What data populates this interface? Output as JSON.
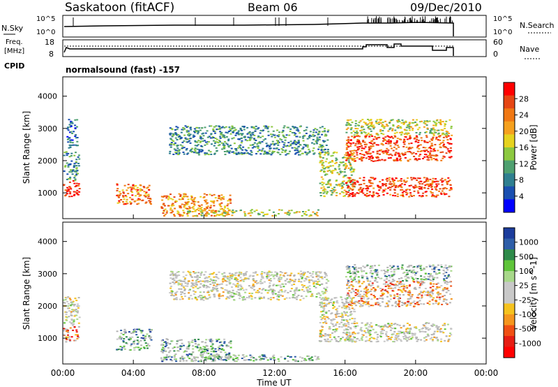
{
  "header": {
    "station": "Saskatoon (fitACF)",
    "beam": "Beam 06",
    "date": "09/Dec/2010"
  },
  "top_panels": {
    "nsky_label": "N.Sky",
    "nsky_ticks": [
      "10^5",
      "10^0"
    ],
    "nsearch_label": "N.Search",
    "nsearch_ticks": [
      "10^5",
      "10^0"
    ],
    "freq_label": "Freq.",
    "freq_unit": "[MHz]",
    "freq_ticks": [
      "18",
      "8"
    ],
    "nave_label": "Nave",
    "nave_ticks": [
      "60",
      "0"
    ],
    "cpid_label": "CPID",
    "cpid_value": "normalsound (fast) -157"
  },
  "colors": {
    "power_scale": [
      "#0000ff",
      "#1a4fb0",
      "#2f7f90",
      "#4fa070",
      "#8cc840",
      "#e6d21e",
      "#f5a01e",
      "#f07814",
      "#e64614",
      "#ff0000"
    ],
    "velocity_scale": [
      "#1c3c9c",
      "#2e5ea8",
      "#2e8a4a",
      "#5fc43a",
      "#a8d88a",
      "#c8c8c8",
      "#c8c8c8",
      "#f5c21e",
      "#f5961e",
      "#f05014",
      "#e61e14",
      "#ff0000"
    ],
    "ground_scatter": "#b4b4b4"
  },
  "chart_data": [
    {
      "type": "heatmap",
      "name": "power",
      "ylabel": "Slant Range [km]",
      "ylim": [
        200,
        4600
      ],
      "yticks": [
        "1000",
        "2000",
        "3000",
        "4000"
      ],
      "xlim_hours": [
        0,
        24
      ],
      "colorbar_label": "Power [dB]",
      "colorbar_ticks": [
        "4",
        "8",
        "12",
        "16",
        "20",
        "24",
        "28"
      ],
      "regions": [
        {
          "t0": 0.0,
          "t1": 0.9,
          "r0": 900,
          "r1": 1400,
          "level": 0.95
        },
        {
          "t0": 0.0,
          "t1": 0.9,
          "r0": 1400,
          "r1": 2300,
          "level": 0.3
        },
        {
          "t0": 0.2,
          "t1": 0.8,
          "r0": 2400,
          "r1": 3300,
          "level": 0.2
        },
        {
          "t0": 3.0,
          "t1": 5.0,
          "r0": 650,
          "r1": 1300,
          "level": 0.75
        },
        {
          "t0": 5.5,
          "t1": 9.5,
          "r0": 300,
          "r1": 1000,
          "level": 0.7
        },
        {
          "t0": 6.0,
          "t1": 15.0,
          "r0": 2200,
          "r1": 3100,
          "level": 0.3
        },
        {
          "t0": 7.0,
          "t1": 14.5,
          "r0": 300,
          "r1": 500,
          "level": 0.5
        },
        {
          "t0": 14.5,
          "t1": 16.5,
          "r0": 900,
          "r1": 2300,
          "level": 0.5
        },
        {
          "t0": 16.0,
          "t1": 22.0,
          "r0": 900,
          "r1": 1500,
          "level": 0.85
        },
        {
          "t0": 16.0,
          "t1": 22.0,
          "r0": 2000,
          "r1": 2800,
          "level": 0.85
        },
        {
          "t0": 16.0,
          "t1": 22.0,
          "r0": 2800,
          "r1": 3300,
          "level": 0.5
        }
      ]
    },
    {
      "type": "heatmap",
      "name": "velocity",
      "ylabel": "Slant Range [km]",
      "ylim": [
        200,
        4600
      ],
      "yticks": [
        "1000",
        "2000",
        "3000",
        "4000"
      ],
      "xlabel": "Time UT",
      "xticks": [
        "00:00",
        "04:00",
        "08:00",
        "12:00",
        "16:00",
        "20:00",
        "00:00"
      ],
      "xlim_hours": [
        0,
        24
      ],
      "colorbar_label": "Velocity [m s^-1]",
      "colorbar_ticks": [
        "1000",
        "500",
        "100",
        "25",
        "-25",
        "-100",
        "-500",
        "-1000"
      ],
      "regions": [
        {
          "t0": 0.0,
          "t1": 0.9,
          "r0": 900,
          "r1": 1400,
          "level": 0.8
        },
        {
          "t0": 0.0,
          "t1": 0.9,
          "r0": 1400,
          "r1": 2300,
          "level": 0.5
        },
        {
          "t0": 3.0,
          "t1": 5.0,
          "r0": 650,
          "r1": 1300,
          "level": 0.25
        },
        {
          "t0": 5.5,
          "t1": 9.5,
          "r0": 300,
          "r1": 1000,
          "level": 0.25
        },
        {
          "t0": 6.0,
          "t1": 15.0,
          "r0": 2200,
          "r1": 3100,
          "level": 0.5
        },
        {
          "t0": 7.0,
          "t1": 14.5,
          "r0": 300,
          "r1": 500,
          "level": 0.3
        },
        {
          "t0": 14.5,
          "t1": 16.5,
          "r0": 900,
          "r1": 2300,
          "level": 0.5
        },
        {
          "t0": 16.0,
          "t1": 22.0,
          "r0": 900,
          "r1": 1500,
          "level": 0.5
        },
        {
          "t0": 16.0,
          "t1": 22.0,
          "r0": 2000,
          "r1": 2800,
          "level": 0.7
        },
        {
          "t0": 16.0,
          "t1": 22.0,
          "r0": 2800,
          "r1": 3300,
          "level": 0.3
        }
      ]
    }
  ]
}
